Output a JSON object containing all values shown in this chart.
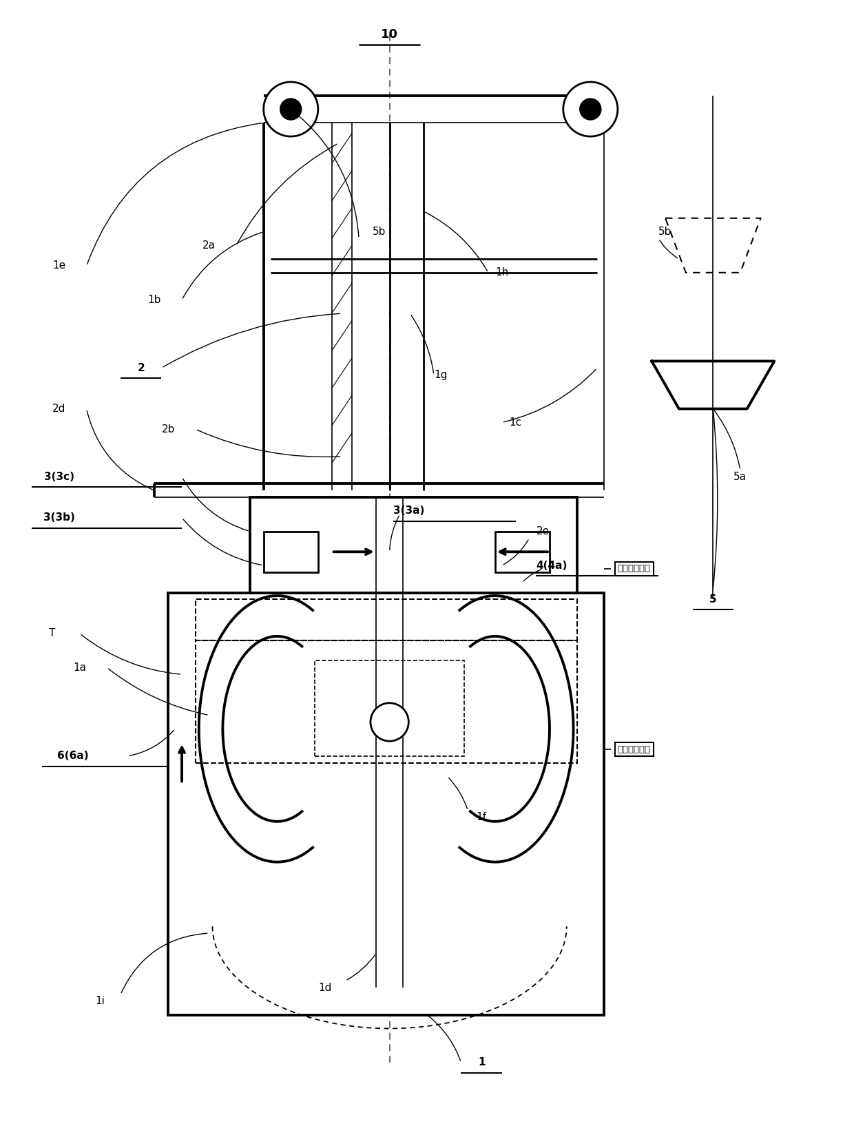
{
  "bg_color": "#ffffff",
  "line_color": "#000000",
  "chinese_label_1": "测量待命位置",
  "chinese_label_2": "测量开始位置",
  "title": "10"
}
